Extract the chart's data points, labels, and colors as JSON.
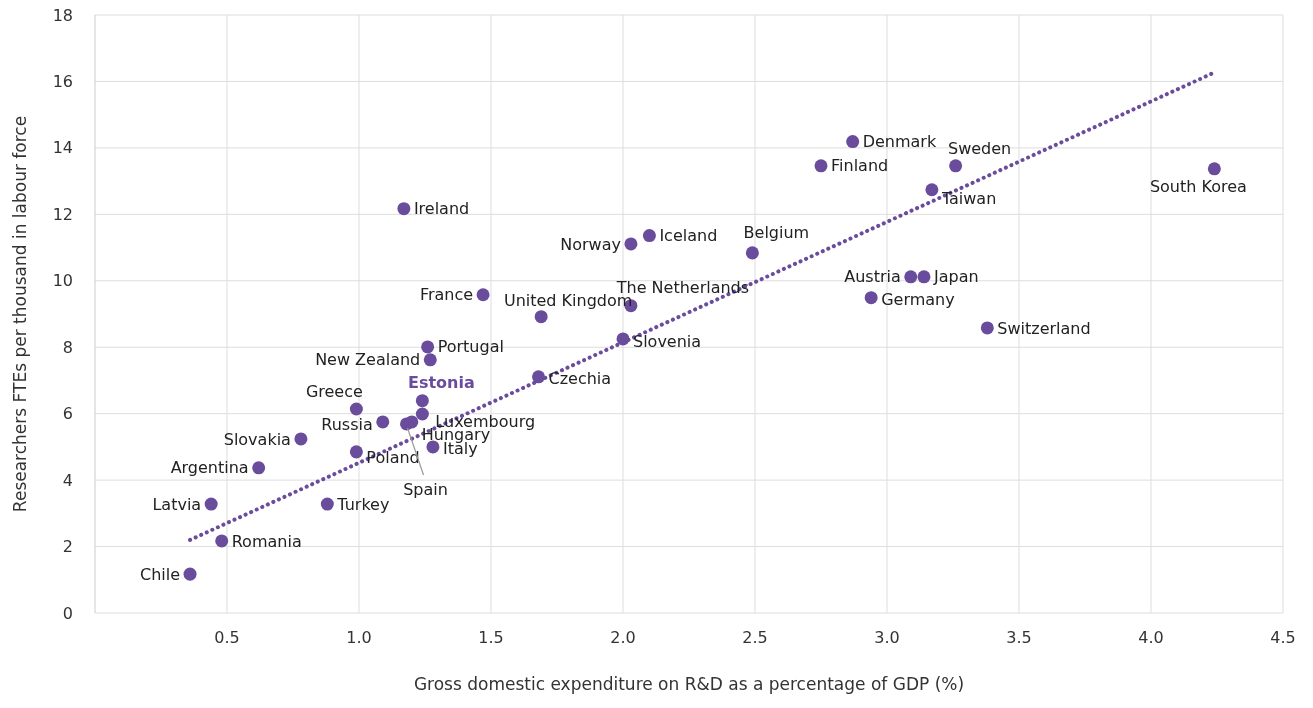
{
  "chart_data": {
    "type": "scatter",
    "xlabel": "Gross domestic expenditure on R&D as a percentage of GDP (%)",
    "ylabel": "Researchers FTEs per thousand in labour force",
    "xlim": [
      0,
      4.5
    ],
    "ylim": [
      0,
      18
    ],
    "xticks": [
      0.5,
      {
        "value": 1,
        "label": "1.0"
      },
      1.5,
      {
        "value": 2,
        "label": "2.0"
      },
      2.5,
      {
        "value": 3,
        "label": "3.0"
      },
      3.5,
      {
        "value": 4,
        "label": "4.0"
      },
      4.5
    ],
    "yticks": [
      0,
      2,
      4,
      6,
      8,
      10,
      12,
      14,
      16,
      18
    ],
    "grid": true,
    "series": [
      {
        "color": "#6a4c9c",
        "marker": "circle",
        "x": [
          0.36,
          0.48,
          0.44,
          0.62,
          0.78,
          0.88,
          0.99,
          0.99,
          1.09,
          1.18,
          1.2,
          1.24,
          1.24,
          1.28,
          1.26,
          1.27,
          1.17,
          1.47,
          1.69,
          1.68,
          2.0,
          2.03,
          2.03,
          2.1,
          2.49,
          2.75,
          2.87,
          2.94,
          3.09,
          3.14,
          3.17,
          3.26,
          3.38,
          4.24
        ],
        "values": [
          1.17,
          2.17,
          3.28,
          4.37,
          5.24,
          3.28,
          6.14,
          4.85,
          5.75,
          5.69,
          5.75,
          6.39,
          5.99,
          5.0,
          8.01,
          7.62,
          12.17,
          9.58,
          8.92,
          7.11,
          8.25,
          9.25,
          11.11,
          11.36,
          10.84,
          13.46,
          14.19,
          9.49,
          10.12,
          10.12,
          12.74,
          13.46,
          8.58,
          13.37
        ]
      },
      {
        "type": "line",
        "color": "#6a4c9c",
        "line_style": "dotted",
        "marker": "none",
        "x": [
          0.36,
          4.24
        ],
        "values": [
          2.2,
          16.27
        ]
      }
    ],
    "annotations": [
      {
        "text": "Chile",
        "x": 0.36,
        "y": 1.17
      },
      {
        "text": "Romania",
        "x": 0.48,
        "y": 2.17
      },
      {
        "text": "Latvia",
        "x": 0.44,
        "y": 3.28
      },
      {
        "text": "Argentina",
        "x": 0.62,
        "y": 4.37
      },
      {
        "text": "Slovakia",
        "x": 0.78,
        "y": 5.24
      },
      {
        "text": "Turkey",
        "x": 0.88,
        "y": 3.28
      },
      {
        "text": "Greece",
        "x": 0.99,
        "y": 6.14
      },
      {
        "text": "Poland",
        "x": 0.99,
        "y": 4.85
      },
      {
        "text": "Russia",
        "x": 1.09,
        "y": 5.75
      },
      {
        "text": "Spain",
        "x": 1.18,
        "y": 5.69
      },
      {
        "text": "Hungary",
        "x": 1.2,
        "y": 5.75
      },
      {
        "text": "Estonia",
        "x": 1.24,
        "y": 6.39
      },
      {
        "text": "Luxembourg",
        "x": 1.24,
        "y": 5.99
      },
      {
        "text": "Italy",
        "x": 1.28,
        "y": 5.0
      },
      {
        "text": "Portugal",
        "x": 1.26,
        "y": 8.01
      },
      {
        "text": "New Zealand",
        "x": 1.27,
        "y": 7.62
      },
      {
        "text": "Ireland",
        "x": 1.17,
        "y": 12.17
      },
      {
        "text": "France",
        "x": 1.47,
        "y": 9.58
      },
      {
        "text": "United Kingdom",
        "x": 1.69,
        "y": 8.92
      },
      {
        "text": "Czechia",
        "x": 1.68,
        "y": 7.11
      },
      {
        "text": "Slovenia",
        "x": 2.0,
        "y": 8.25
      },
      {
        "text": "The Netherlands",
        "x": 2.03,
        "y": 9.25
      },
      {
        "text": "Norway",
        "x": 2.03,
        "y": 11.11
      },
      {
        "text": "Iceland",
        "x": 2.1,
        "y": 11.36
      },
      {
        "text": "Belgium",
        "x": 2.49,
        "y": 10.84
      },
      {
        "text": "Finland",
        "x": 2.75,
        "y": 13.46
      },
      {
        "text": "Denmark",
        "x": 2.87,
        "y": 14.19
      },
      {
        "text": "Germany",
        "x": 2.94,
        "y": 9.49
      },
      {
        "text": "Austria",
        "x": 3.09,
        "y": 10.12
      },
      {
        "text": "Japan",
        "x": 3.14,
        "y": 10.12
      },
      {
        "text": "Taiwan",
        "x": 3.17,
        "y": 12.74
      },
      {
        "text": "Sweden",
        "x": 3.26,
        "y": 13.46
      },
      {
        "text": "Switzerland",
        "x": 3.38,
        "y": 8.58
      },
      {
        "text": "South Korea",
        "x": 4.24,
        "y": 13.37
      }
    ]
  }
}
